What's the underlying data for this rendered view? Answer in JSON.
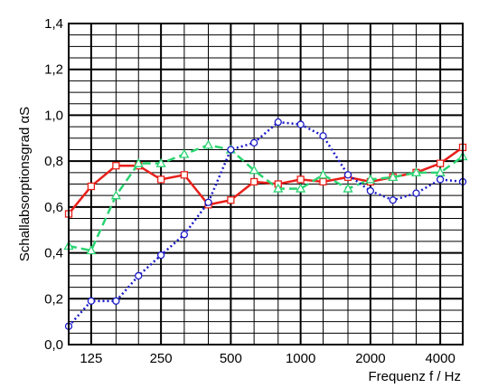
{
  "chart_data": {
    "type": "line",
    "xlabel": "Frequenz f / Hz",
    "ylabel": "Schallabsorptionsgrad αS",
    "xscale": "log",
    "xlim": [
      100,
      5000
    ],
    "ylim": [
      0,
      1.4
    ],
    "grid": true,
    "x_ticks": [
      {
        "value": 125,
        "label": "125"
      },
      {
        "value": 250,
        "label": "250"
      },
      {
        "value": 500,
        "label": "500"
      },
      {
        "value": 1000,
        "label": "1000"
      },
      {
        "value": 2000,
        "label": "2000"
      },
      {
        "value": 4000,
        "label": "4000"
      }
    ],
    "y_ticks": [
      {
        "value": 0,
        "label": "0,0"
      },
      {
        "value": 0.2,
        "label": "0,2"
      },
      {
        "value": 0.4,
        "label": "0,4"
      },
      {
        "value": 0.6,
        "label": "0,6"
      },
      {
        "value": 0.8,
        "label": "0,8"
      },
      {
        "value": 1.0,
        "label": "1,0"
      },
      {
        "value": 1.2,
        "label": "1,2"
      },
      {
        "value": 1.4,
        "label": "1,4"
      }
    ],
    "x": [
      100,
      125,
      160,
      200,
      250,
      315,
      400,
      500,
      630,
      800,
      1000,
      1250,
      1600,
      2000,
      2500,
      3150,
      4000,
      5000
    ],
    "series": [
      {
        "color": "#e8201a",
        "marker": "square",
        "style": "solid",
        "values": [
          0.57,
          0.69,
          0.78,
          0.78,
          0.72,
          0.74,
          0.61,
          0.63,
          0.71,
          0.7,
          0.72,
          0.71,
          0.73,
          0.71,
          0.73,
          0.75,
          0.79,
          0.86
        ]
      },
      {
        "color": "#2bd472",
        "marker": "triangle",
        "style": "dashed",
        "values": [
          0.43,
          0.41,
          0.65,
          0.79,
          0.79,
          0.83,
          0.87,
          0.85,
          0.76,
          0.68,
          0.68,
          0.74,
          0.68,
          0.72,
          0.73,
          0.75,
          0.75,
          0.82
        ]
      },
      {
        "color": "#1a1ac8",
        "marker": "circle",
        "style": "dotted",
        "values": [
          0.08,
          0.19,
          0.19,
          0.3,
          0.39,
          0.48,
          0.62,
          0.85,
          0.88,
          0.97,
          0.96,
          0.91,
          0.74,
          0.67,
          0.63,
          0.66,
          0.72,
          0.71
        ]
      }
    ]
  }
}
